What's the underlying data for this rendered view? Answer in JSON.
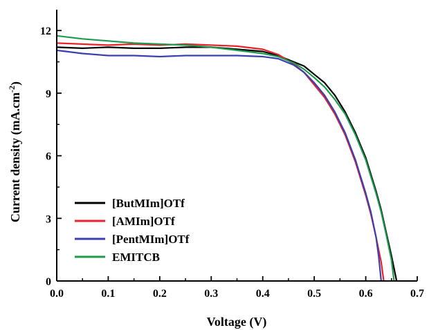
{
  "chart_data": {
    "type": "line",
    "xlabel": "Voltage (V)",
    "ylabel_main": "Current density (mA.cm",
    "ylabel_sup": "-2",
    "ylabel_close": ")",
    "xlim": [
      0,
      0.7
    ],
    "ylim": [
      0,
      13
    ],
    "xticks": [
      0.0,
      0.1,
      0.2,
      0.3,
      0.4,
      0.5,
      0.6,
      0.7
    ],
    "xtick_labels": [
      "0.0",
      "0.1",
      "0.2",
      "0.3",
      "0.4",
      "0.5",
      "0.6",
      "0.7"
    ],
    "yticks": [
      0,
      3,
      6,
      9,
      12
    ],
    "ytick_labels": [
      "0",
      "3",
      "6",
      "9",
      "12"
    ],
    "grid": false,
    "legend_position": "bottom-left",
    "series": [
      {
        "name": "[ButMIm]OTf",
        "color": "#000000",
        "x": [
          0,
          0.05,
          0.1,
          0.15,
          0.2,
          0.25,
          0.3,
          0.35,
          0.4,
          0.43,
          0.46,
          0.48,
          0.5,
          0.52,
          0.54,
          0.56,
          0.58,
          0.6,
          0.62,
          0.63,
          0.64,
          0.65,
          0.66
        ],
        "y": [
          11.2,
          11.15,
          11.2,
          11.15,
          11.15,
          11.2,
          11.2,
          11.1,
          11.0,
          10.8,
          10.5,
          10.3,
          9.9,
          9.5,
          8.9,
          8.1,
          7.1,
          5.9,
          4.3,
          3.4,
          2.3,
          1.2,
          0
        ]
      },
      {
        "name": "[AMIm]OTf",
        "color": "#e8222b",
        "x": [
          0,
          0.05,
          0.1,
          0.15,
          0.2,
          0.25,
          0.3,
          0.35,
          0.4,
          0.43,
          0.46,
          0.48,
          0.5,
          0.52,
          0.54,
          0.56,
          0.58,
          0.6,
          0.61,
          0.62,
          0.63,
          0.635
        ],
        "y": [
          11.4,
          11.35,
          11.3,
          11.35,
          11.3,
          11.35,
          11.3,
          11.25,
          11.1,
          10.85,
          10.4,
          10.0,
          9.4,
          8.8,
          8.0,
          7.0,
          5.7,
          4.1,
          3.2,
          2.1,
          0.9,
          0
        ]
      },
      {
        "name": "[PentMIm]OTf",
        "color": "#3b3fb0",
        "x": [
          0,
          0.05,
          0.1,
          0.15,
          0.2,
          0.25,
          0.3,
          0.35,
          0.4,
          0.43,
          0.46,
          0.48,
          0.5,
          0.52,
          0.54,
          0.56,
          0.58,
          0.6,
          0.61,
          0.62,
          0.625,
          0.63
        ],
        "y": [
          11.05,
          10.9,
          10.8,
          10.8,
          10.75,
          10.8,
          10.8,
          10.8,
          10.75,
          10.65,
          10.35,
          10.0,
          9.5,
          8.9,
          8.1,
          7.1,
          5.8,
          4.2,
          3.3,
          2.1,
          1.2,
          0
        ]
      },
      {
        "name": "EMITCB",
        "color": "#1e9a4e",
        "x": [
          0,
          0.05,
          0.1,
          0.15,
          0.2,
          0.25,
          0.3,
          0.35,
          0.4,
          0.43,
          0.46,
          0.48,
          0.5,
          0.52,
          0.54,
          0.56,
          0.58,
          0.6,
          0.62,
          0.63,
          0.64,
          0.65,
          0.655
        ],
        "y": [
          11.75,
          11.6,
          11.5,
          11.4,
          11.35,
          11.3,
          11.2,
          11.05,
          10.9,
          10.75,
          10.45,
          10.15,
          9.75,
          9.3,
          8.7,
          8.0,
          7.0,
          5.8,
          4.2,
          3.3,
          2.2,
          1.0,
          0
        ]
      }
    ]
  }
}
